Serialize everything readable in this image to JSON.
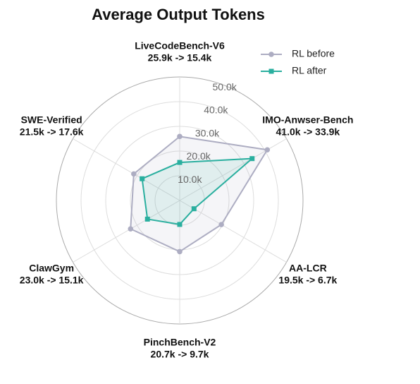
{
  "chart_data": {
    "type": "radar",
    "title": "Average Output Tokens",
    "categories": [
      "LiveCodeBench-V6",
      "IMO-Anwser-Bench",
      "AA-LCR",
      "PinchBench-V2",
      "ClawGym",
      "SWE-Verified"
    ],
    "category_notes": [
      "25.9k -> 15.4k",
      "41.0k -> 33.9k",
      "19.5k -> 6.7k",
      "20.7k -> 9.7k",
      "23.0k -> 15.1k",
      "21.5k -> 17.6k"
    ],
    "series": [
      {
        "name": "RL before",
        "color": "#adadc2",
        "marker": "circle",
        "values": [
          25900,
          41000,
          19500,
          20700,
          23000,
          21500
        ]
      },
      {
        "name": "RL after",
        "color": "#2aaf9f",
        "marker": "square",
        "values": [
          15400,
          33900,
          6700,
          9700,
          15100,
          17600
        ]
      }
    ],
    "ylim": [
      0,
      50000
    ],
    "yticks": [
      {
        "value": 10000,
        "label": "10.0k"
      },
      {
        "value": 20000,
        "label": "20.0k"
      },
      {
        "value": 30000,
        "label": "30.0k"
      },
      {
        "value": 40000,
        "label": "40.0k"
      },
      {
        "value": 50000,
        "label": "50.0k"
      }
    ],
    "grid": true,
    "legend": "upper right"
  }
}
